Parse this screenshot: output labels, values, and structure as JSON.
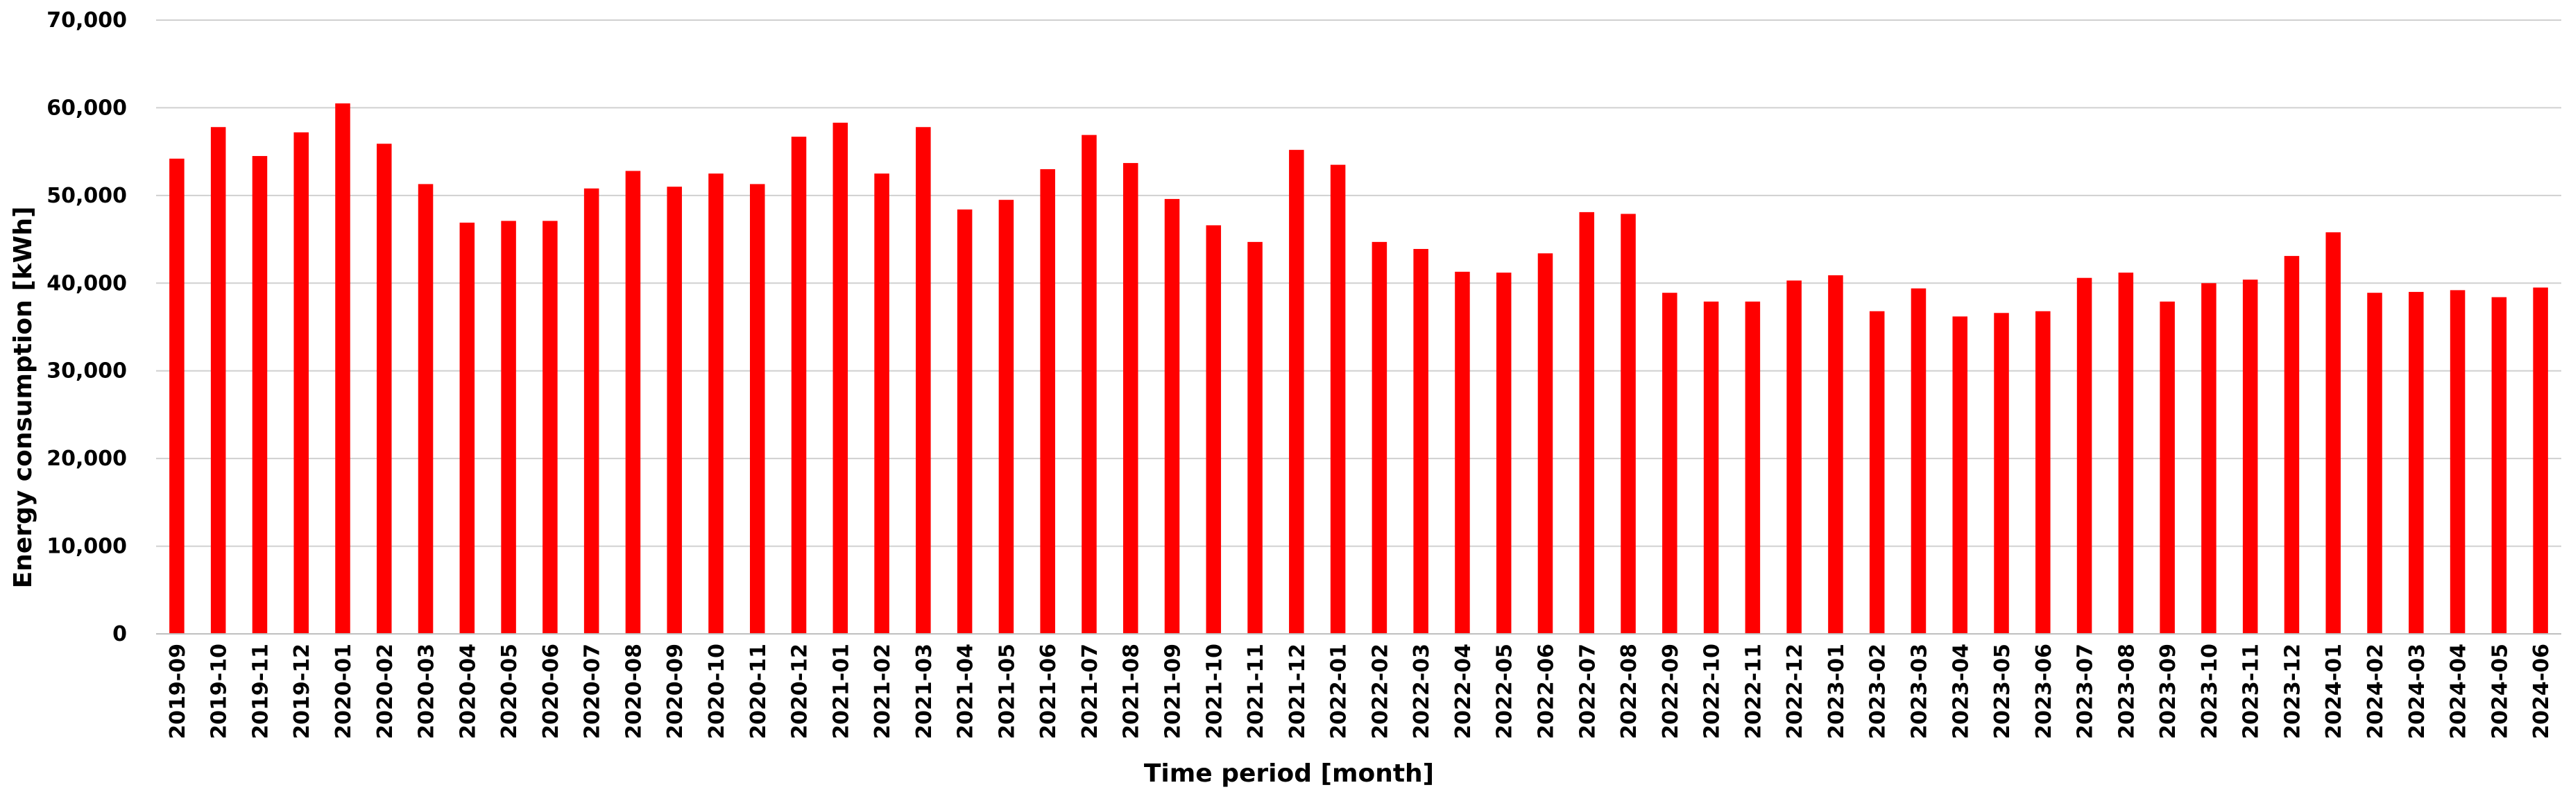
{
  "chart_data": {
    "type": "bar",
    "title": "",
    "xlabel": "Time period [month]",
    "ylabel": "Energy consumption [kWh]",
    "ylim": [
      0,
      70000
    ],
    "yticks": [
      "0",
      "10,000",
      "20,000",
      "30,000",
      "40,000",
      "50,000",
      "60,000",
      "70,000"
    ],
    "grid": true,
    "bar_color": "#ff0000",
    "categories": [
      "2019-09",
      "2019-10",
      "2019-11",
      "2019-12",
      "2020-01",
      "2020-02",
      "2020-03",
      "2020-04",
      "2020-05",
      "2020-06",
      "2020-07",
      "2020-08",
      "2020-09",
      "2020-10",
      "2020-11",
      "2020-12",
      "2021-01",
      "2021-02",
      "2021-03",
      "2021-04",
      "2021-05",
      "2021-06",
      "2021-07",
      "2021-08",
      "2021-09",
      "2021-10",
      "2021-11",
      "2021-12",
      "2022-01",
      "2022-02",
      "2022-03",
      "2022-04",
      "2022-05",
      "2022-06",
      "2022-07",
      "2022-08",
      "2022-09",
      "2022-10",
      "2022-11",
      "2022-12",
      "2023-01",
      "2023-02",
      "2023-03",
      "2023-04",
      "2023-05",
      "2023-06",
      "2023-07",
      "2023-08",
      "2023-09",
      "2023-10",
      "2023-11",
      "2023-12",
      "2024-01",
      "2024-02",
      "2024-03",
      "2024-04",
      "2024-05",
      "2024-06"
    ],
    "values": [
      54200,
      57800,
      54500,
      57200,
      60500,
      55900,
      51300,
      46900,
      47100,
      47100,
      50800,
      52800,
      51000,
      52500,
      51300,
      56700,
      58300,
      52500,
      57800,
      48400,
      49500,
      53000,
      56900,
      53700,
      49600,
      46600,
      44700,
      55200,
      53500,
      44700,
      43900,
      41300,
      41200,
      43400,
      48100,
      47900,
      38900,
      37900,
      37900,
      40300,
      40900,
      36800,
      39400,
      36200,
      36600,
      36800,
      40600,
      41200,
      37900,
      40000,
      40400,
      43100,
      45800,
      38900,
      39000,
      39200,
      38400,
      39500
    ]
  }
}
